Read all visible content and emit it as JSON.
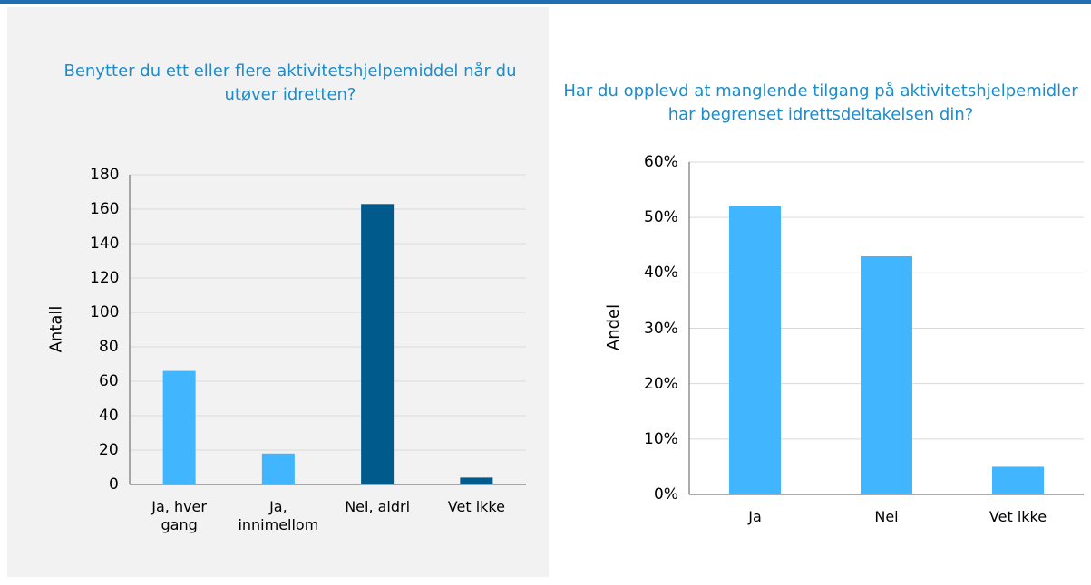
{
  "chart_data": [
    {
      "type": "bar",
      "title": "Benytter du ett eller flere aktivitetshjelpemiddel når du utøver idretten?",
      "y_label": "Antall",
      "categories": [
        "Ja, hver gang",
        "Ja, innimellom",
        "Nei, aldri",
        "Vet ikke"
      ],
      "values": [
        66,
        18,
        163,
        4
      ],
      "colors": [
        "#41b6ff",
        "#41b6ff",
        "#005a8c",
        "#005a8c"
      ],
      "ylim": [
        0,
        180
      ],
      "yticks": [
        0,
        20,
        40,
        60,
        80,
        100,
        120,
        140,
        160,
        180
      ],
      "grid": true
    },
    {
      "type": "bar",
      "title": "Har du opplevd at manglende tilgang på aktivitetshjelpemidler har begrenset idrettsdeltakelsen din?",
      "y_label": "Andel",
      "categories": [
        "Ja",
        "Nei",
        "Vet ikke"
      ],
      "values": [
        52,
        43,
        5
      ],
      "color": "#41b6ff",
      "ylim": [
        0,
        60
      ],
      "yticks": [
        {
          "value": 0,
          "label": "0%"
        },
        {
          "value": 10,
          "label": "10%"
        },
        {
          "value": 20,
          "label": "20%"
        },
        {
          "value": 30,
          "label": "30%"
        },
        {
          "value": 40,
          "label": "40%"
        },
        {
          "value": 50,
          "label": "50%"
        },
        {
          "value": 60,
          "label": "60%"
        }
      ],
      "grid": true
    }
  ]
}
